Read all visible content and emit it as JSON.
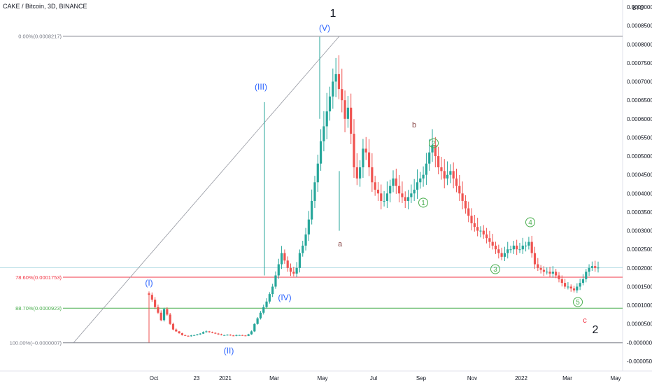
{
  "header": {
    "title": "CAKE / Bitcoin, 3D, BINANCE"
  },
  "axis": {
    "currency": "BTC"
  },
  "chart_data": {
    "type": "candlestick",
    "y_ticks": [
      "0.0009000",
      "0.0008500",
      "0.0008000",
      "0.0007500",
      "0.0007000",
      "0.0006500",
      "0.0006000",
      "0.0005500",
      "0.0005000",
      "0.0004500",
      "0.0004000",
      "0.0003500",
      "0.0003000",
      "0.0002500",
      "0.0002000",
      "0.0001500",
      "0.0001000",
      "0.0000500",
      "-0.0000000",
      "-0.0000500"
    ],
    "y_range": [
      -6.5e-05,
      0.000925
    ],
    "x_labels": [
      "Oct",
      "23",
      "2021",
      "Mar",
      "May",
      "Jul",
      "Sep",
      "Nov",
      "2022",
      "Mar",
      "May"
    ],
    "fib_levels": [
      {
        "label": "0.00%(0.0008217)",
        "value": 0.0008217,
        "color": "#787b86"
      },
      {
        "label": "78.60%(0.0001753)",
        "value": 0.0001753,
        "color": "#f23645"
      },
      {
        "label": "88.70%(0.0000923)",
        "value": 9.23e-05,
        "color": "#4caf50"
      },
      {
        "label": "100.00%(−0.0000007)",
        "value": -7e-07,
        "color": "#787b86"
      }
    ],
    "current_price_line": 0.000201,
    "wave_labels": [
      {
        "text": "1",
        "color": "#131722",
        "size": 16
      },
      {
        "text": "(V)",
        "color": "#2962ff",
        "size": 12
      },
      {
        "text": "(III)",
        "color": "#2962ff",
        "size": 12
      },
      {
        "text": "(I)",
        "color": "#2962ff",
        "size": 12
      },
      {
        "text": "(IV)",
        "color": "#2962ff",
        "size": 12
      },
      {
        "text": "(II)",
        "color": "#2962ff",
        "size": 12
      },
      {
        "text": "a",
        "color": "#8b4a4a",
        "size": 11
      },
      {
        "text": "b",
        "color": "#8b4a4a",
        "size": 11
      },
      {
        "text": "c",
        "color": "#f23645",
        "size": 11
      },
      {
        "text": "2",
        "color": "#131722",
        "size": 16
      },
      {
        "text": "1",
        "color": "#4caf50",
        "size": 10,
        "circle": true
      },
      {
        "text": "2",
        "color": "#4caf50",
        "size": 10,
        "circle": true
      },
      {
        "text": "3",
        "color": "#4caf50",
        "size": 10,
        "circle": true
      },
      {
        "text": "4",
        "color": "#4caf50",
        "size": 10,
        "circle": true
      },
      {
        "text": "5",
        "color": "#4caf50",
        "size": 10,
        "circle": true
      }
    ],
    "price_path": [
      0.000128,
      0.000115,
      9.5e-05,
      8e-05,
      6e-05,
      9e-05,
      7.5e-05,
      5e-05,
      3.5e-05,
      3e-05,
      2.5e-05,
      2e-05,
      1.8e-05,
      1.7e-05,
      1.9e-05,
      2e-05,
      2.2e-05,
      2.4e-05,
      2.8e-05,
      3e-05,
      2.8e-05,
      2.6e-05,
      2.4e-05,
      2.2e-05,
      2e-05,
      2e-05,
      2.1e-05,
      1.9e-05,
      1.8e-05,
      2e-05,
      2e-05,
      1.9e-05,
      1.8e-05,
      2.2e-05,
      3e-05,
      5e-05,
      6.5e-05,
      8e-05,
      9.5e-05,
      0.00011,
      0.00013,
      0.00015,
      0.00018,
      0.00021,
      0.00024,
      0.00022,
      0.0002,
      0.00019,
      0.000185,
      0.0002,
      0.00024,
      0.00026,
      0.00029,
      0.00033,
      0.00038,
      0.00043,
      0.00048,
      0.00054,
      0.00058,
      0.00062,
      0.00066,
      0.0007,
      0.00072,
      0.00068,
      0.00065,
      0.0006,
      0.00063,
      0.00056,
      0.00047,
      0.00044,
      0.00047,
      0.00052,
      0.00051,
      0.00047,
      0.00043,
      0.00041,
      0.0004,
      0.00038,
      0.00038,
      0.0004,
      0.00042,
      0.00044,
      0.00042,
      0.0004,
      0.00039,
      0.00038,
      0.00039,
      0.0004,
      0.00041,
      0.00043,
      0.00044,
      0.00045,
      0.00048,
      0.00051,
      0.00053,
      0.0005,
      0.00047,
      0.00046,
      0.00044,
      0.00045,
      0.00046,
      0.00044,
      0.00042,
      0.0004,
      0.00038,
      0.00036,
      0.00034,
      0.00032,
      0.00031,
      0.0003,
      0.0003,
      0.00029,
      0.00028,
      0.00027,
      0.00026,
      0.00025,
      0.00024,
      0.00023,
      0.00024,
      0.00025,
      0.00025,
      0.00026,
      0.00025,
      0.00025,
      0.00026,
      0.00026,
      0.00027,
      0.00024,
      0.00021,
      0.0002,
      0.000195,
      0.00019,
      0.00019,
      0.000185,
      0.00019,
      0.00018,
      0.00017,
      0.00016,
      0.00015,
      0.00015,
      0.000145,
      0.00014,
      0.00015,
      0.00016,
      0.00017,
      0.00019,
      0.0002,
      0.000205,
      0.0002,
      0.000201
    ]
  }
}
